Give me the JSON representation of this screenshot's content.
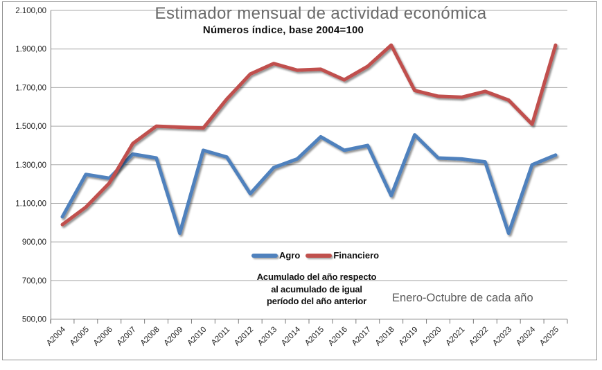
{
  "chart_data": {
    "type": "line",
    "title": "Estimador mensual de actividad económica",
    "subtitle": "Números índice, base 2004=100",
    "xlabel": "",
    "ylabel": "",
    "grid": "horizontal",
    "legend_position": "inside-bottom-center",
    "ylim": [
      500,
      2100
    ],
    "ytick_step": 200,
    "yticks": [
      {
        "value": 500,
        "label": "500,00"
      },
      {
        "value": 700,
        "label": "700,00"
      },
      {
        "value": 900,
        "label": "900,00"
      },
      {
        "value": 1100,
        "label": "1.100,00"
      },
      {
        "value": 1300,
        "label": "1.300,00"
      },
      {
        "value": 1500,
        "label": "1.500,00"
      },
      {
        "value": 1700,
        "label": "1.700,00"
      },
      {
        "value": 1900,
        "label": "1.900,00"
      },
      {
        "value": 2100,
        "label": "2.100,00"
      }
    ],
    "categories": [
      "A2004",
      "A2005",
      "A2006",
      "A2007",
      "A2008",
      "A2009",
      "A2010",
      "A2011",
      "A2012",
      "A2013",
      "A2014",
      "A2015",
      "A2016",
      "A2017",
      "A2018",
      "A2019",
      "A2020",
      "A2021",
      "A2022",
      "A2023",
      "A2024",
      "A2025"
    ],
    "series": [
      {
        "name": "Agro",
        "color": "#4F81BD",
        "values": [
          1030,
          1250,
          1230,
          1355,
          1335,
          945,
          1375,
          1340,
          1150,
          1285,
          1330,
          1445,
          1375,
          1400,
          1140,
          1455,
          1335,
          1330,
          1315,
          945,
          1300,
          1350
        ]
      },
      {
        "name": "Financiero",
        "color": "#C0504D",
        "values": [
          990,
          1080,
          1205,
          1410,
          1500,
          1495,
          1490,
          1640,
          1770,
          1825,
          1790,
          1795,
          1740,
          1810,
          1920,
          1685,
          1655,
          1650,
          1680,
          1635,
          1510,
          1920
        ]
      }
    ],
    "annotations": [
      {
        "id": "method-note",
        "lines": [
          "Acumulado del año respecto",
          "al acumulado de igual",
          "período del año anterior"
        ]
      },
      {
        "id": "period-note",
        "text": "Enero-Octubre de cada año"
      }
    ]
  }
}
